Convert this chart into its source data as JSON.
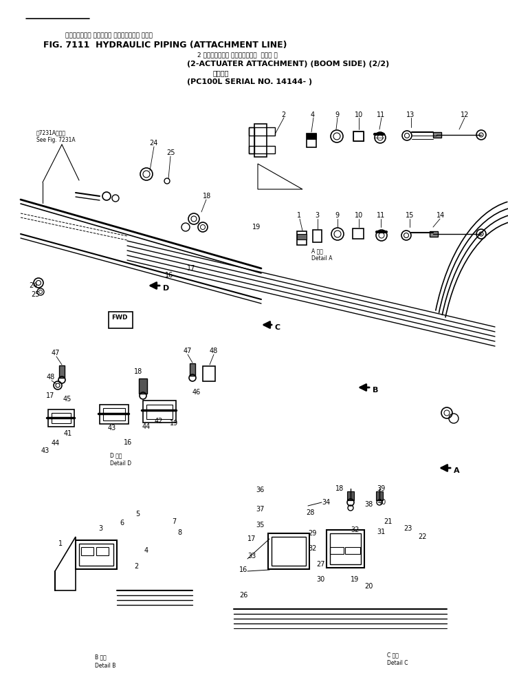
{
  "title_jp": "ハイドロリック パイピング アタッチメント ライン",
  "title_en": "FIG. 7111  HYDRAULIC PIPING (ATTACHMENT LINE)",
  "subtitle_jp": "2 アクチュエータ アタッチメント  ブーム 側",
  "subtitle_en": "(2-ACTUATER ATTACHMENT) (BOOM SIDE) (2/2)",
  "model_jp": "適用号機",
  "model_en": "(PC100L SERIAL NO. 14144- )",
  "bg_color": "#ffffff",
  "fig_width": 7.39,
  "fig_height": 10.07,
  "dpi": 100
}
